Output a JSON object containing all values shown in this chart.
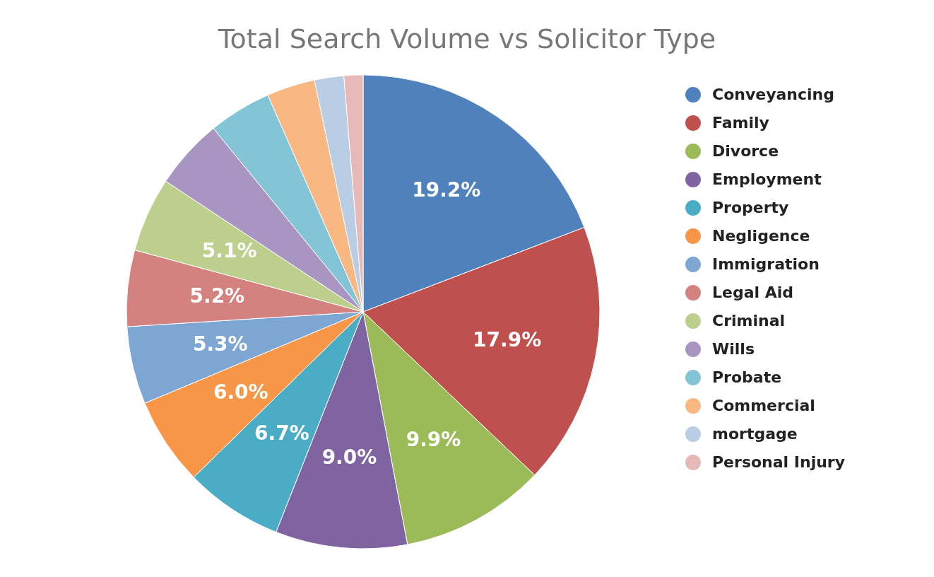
{
  "chart_data": {
    "type": "pie",
    "title": "Total Search Volume vs Solicitor Type",
    "categories": [
      "Conveyancing",
      "Family",
      "Divorce",
      "Employment",
      "Property",
      "Negligence",
      "Immigration",
      "Legal Aid",
      "Criminal",
      "Wills",
      "Probate",
      "Commercial",
      "mortgage",
      "Personal Injury"
    ],
    "values": [
      19.2,
      17.9,
      9.9,
      9.0,
      6.7,
      6.0,
      5.3,
      5.2,
      5.1,
      4.8,
      4.3,
      3.3,
      2.0,
      1.3
    ],
    "value_labels": [
      "19.2%",
      "17.9%",
      "9.9%",
      "9.0%",
      "6.7%",
      "6.0%",
      "5.3%",
      "5.2%",
      "5.1%",
      null,
      null,
      null,
      null,
      null
    ],
    "colors": [
      "#4f81bd",
      "#c0504d",
      "#9bbb59",
      "#8064a2",
      "#4bacc6",
      "#f79646",
      "#7ea6d3",
      "#d4827f",
      "#bccf8c",
      "#a895c1",
      "#83c5d7",
      "#f9b781",
      "#b9cde5",
      "#e6b9b8"
    ],
    "legend": "right"
  }
}
